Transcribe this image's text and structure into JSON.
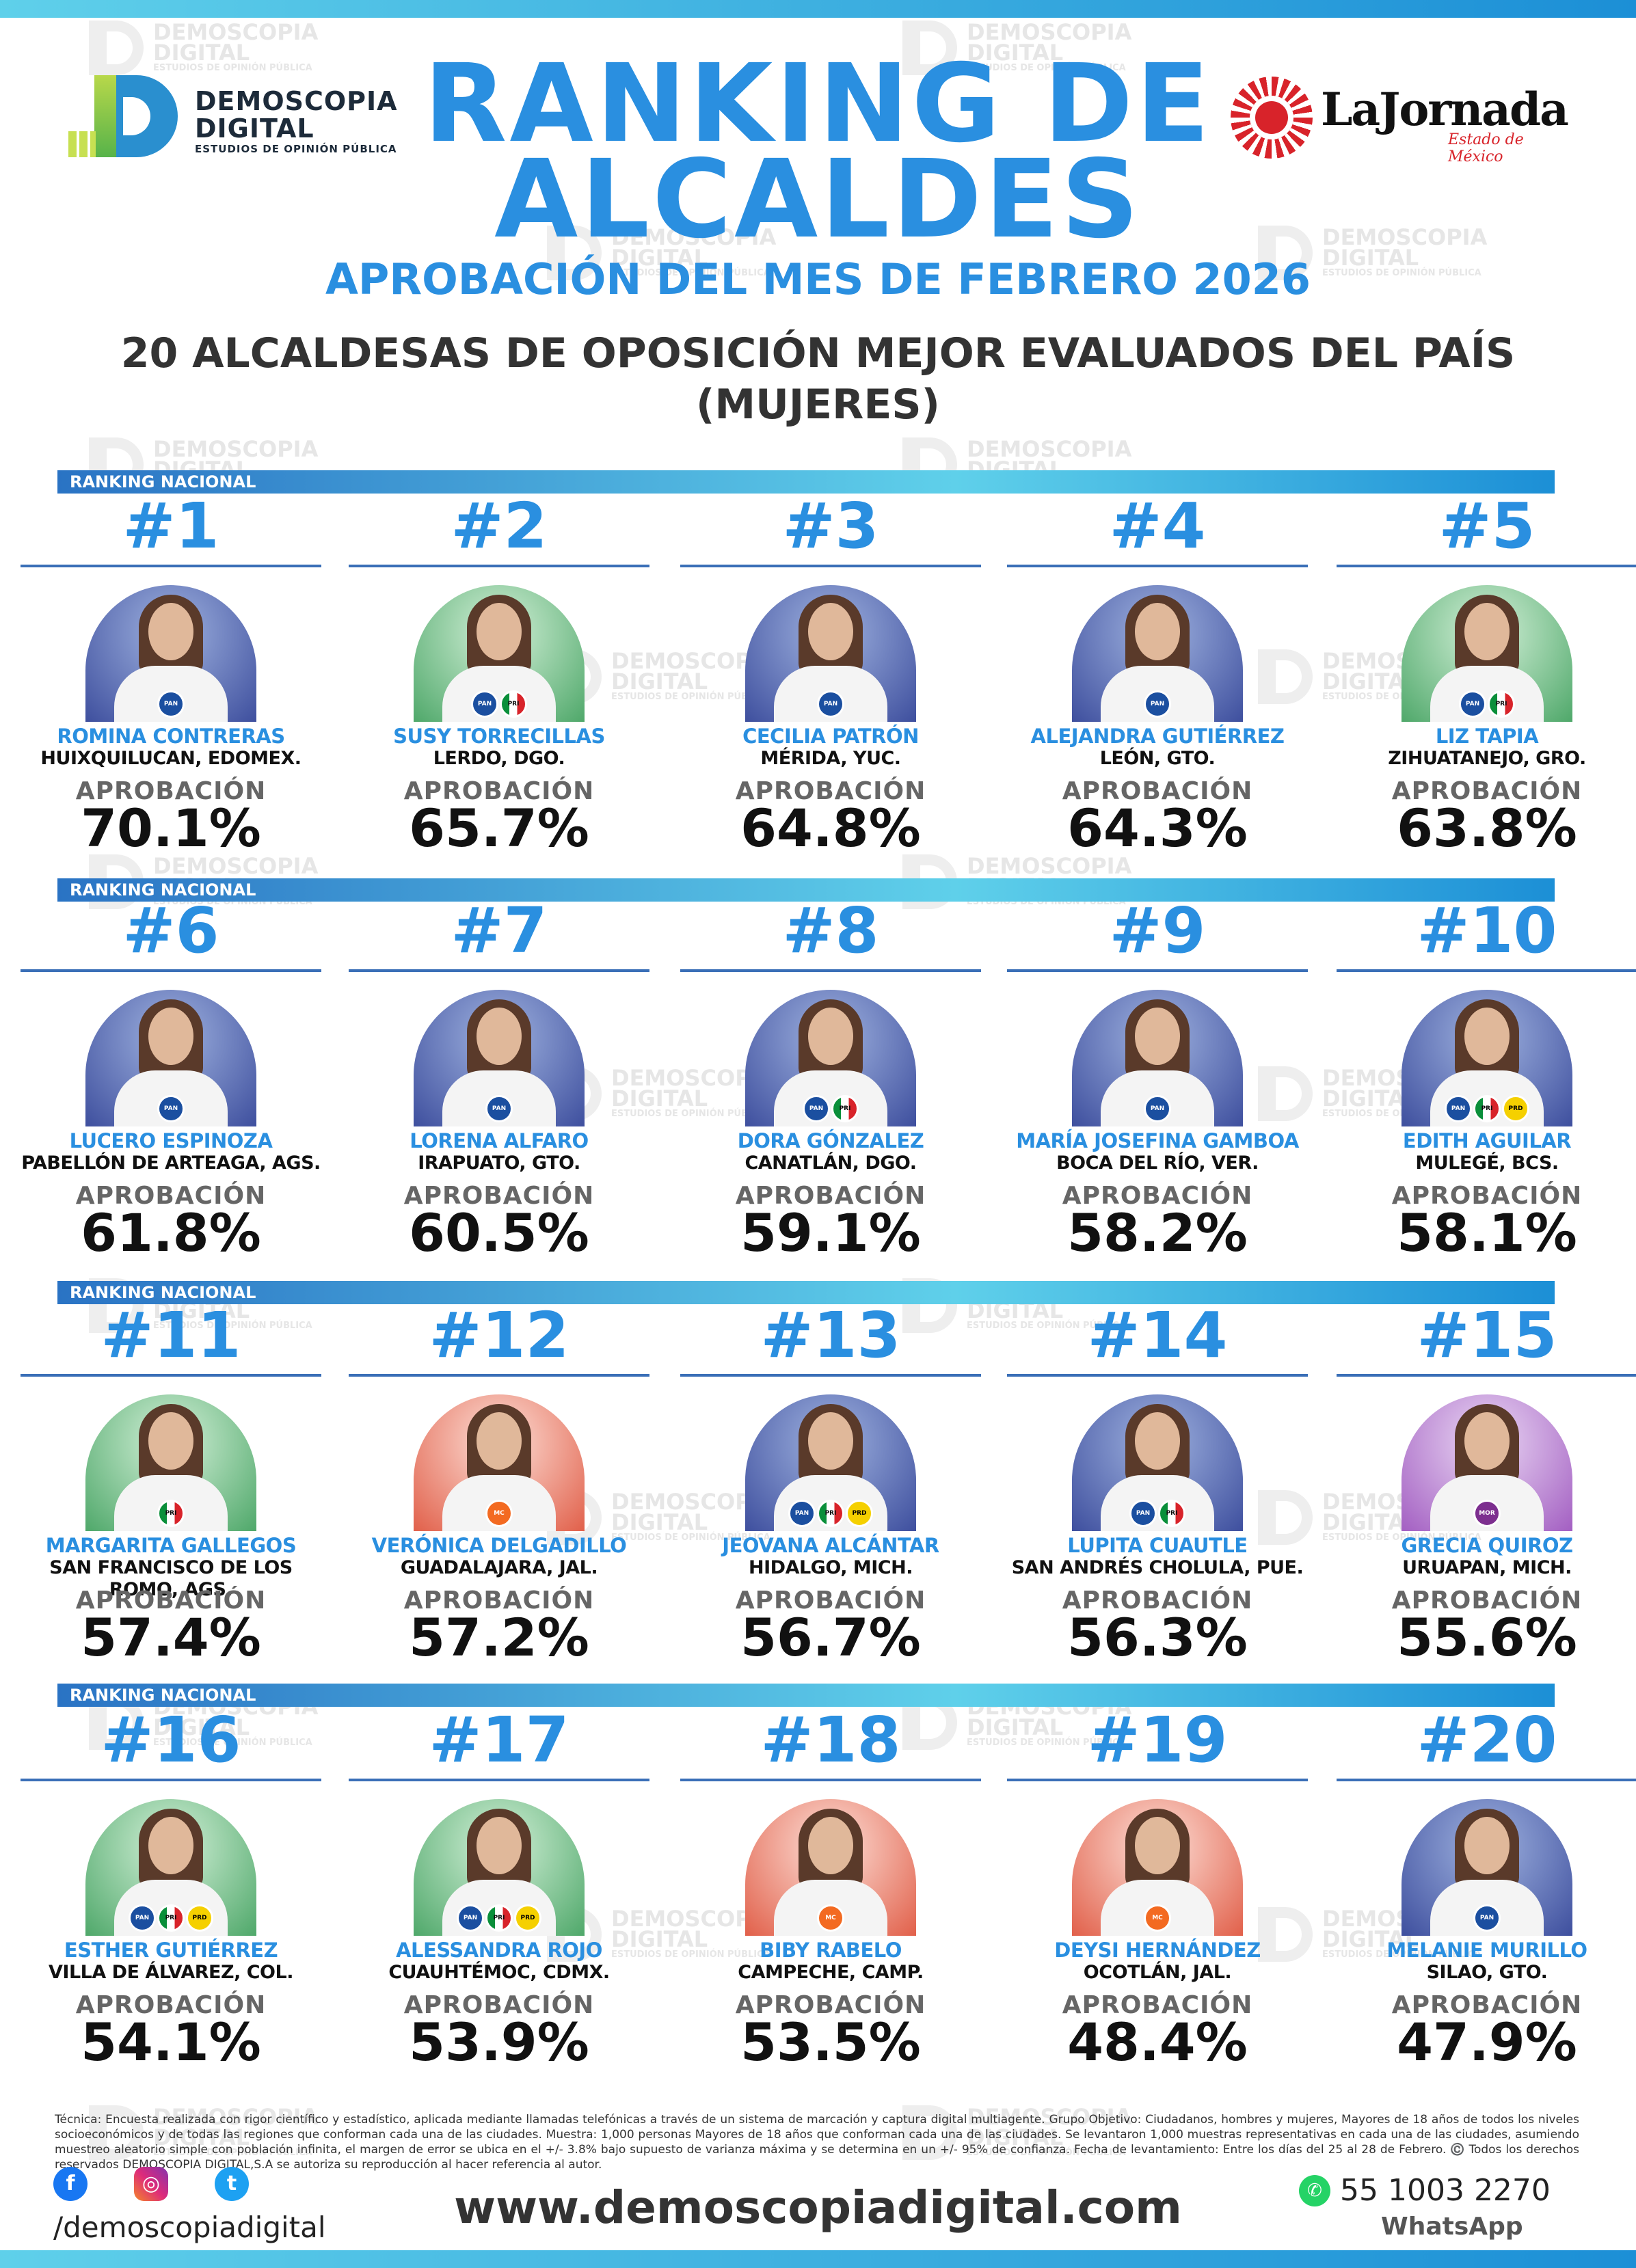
{
  "header": {
    "title_line1": "RANKING DE",
    "title_line2": "ALCALDES",
    "subtitle": "APROBACIÓN DEL MES DE FEBRERO 2026",
    "heading_line1": "20 ALCALDESAS DE OPOSICIÓN MEJOR EVALUADOS DEL PAÍS",
    "heading_line2": "(MUJERES)"
  },
  "logos": {
    "demoscopia_line1": "DEMOSCOPIA",
    "demoscopia_line2": "DIGITAL",
    "demoscopia_line3": "ESTUDIOS DE OPINIÓN PÚBLICA",
    "jornada_name": "LaJornada",
    "jornada_sub": "Estado de México"
  },
  "watermark": {
    "line1": "DEMOSCOPIA",
    "line2": "DIGITAL",
    "line3": "ESTUDIOS DE OPINIÓN PÚBLICA"
  },
  "band_label": "RANKING NACIONAL",
  "aprobacion_label": "APROBACIÓN",
  "ranking": [
    {
      "rank": "#1",
      "name": "ROMINA CONTRERAS",
      "city": "HUIXQUILUCAN, EDOMEX.",
      "approval": "70.1%",
      "parties": [
        "PAN"
      ]
    },
    {
      "rank": "#2",
      "name": "SUSY TORRECILLAS",
      "city": "LERDO, DGO.",
      "approval": "65.7%",
      "parties": [
        "PAN",
        "PRI"
      ]
    },
    {
      "rank": "#3",
      "name": "CECILIA PATRÓN",
      "city": "MÉRIDA, YUC.",
      "approval": "64.8%",
      "parties": [
        "PAN"
      ]
    },
    {
      "rank": "#4",
      "name": "ALEJANDRA GUTIÉRREZ",
      "city": "LEÓN, GTO.",
      "approval": "64.3%",
      "parties": [
        "PAN"
      ]
    },
    {
      "rank": "#5",
      "name": "LIZ TAPIA",
      "city": "ZIHUATANEJO, GRO.",
      "approval": "63.8%",
      "parties": [
        "PAN",
        "PRI"
      ]
    },
    {
      "rank": "#6",
      "name": "LUCERO ESPINOZA",
      "city": "PABELLÓN DE ARTEAGA, AGS.",
      "approval": "61.8%",
      "parties": [
        "PAN"
      ]
    },
    {
      "rank": "#7",
      "name": "LORENA ALFARO",
      "city": "IRAPUATO, GTO.",
      "approval": "60.5%",
      "parties": [
        "PAN"
      ]
    },
    {
      "rank": "#8",
      "name": "DORA GÓNZALEZ",
      "city": "CANATLÁN, DGO.",
      "approval": "59.1%",
      "parties": [
        "PAN",
        "PRI"
      ]
    },
    {
      "rank": "#9",
      "name": "MARÍA JOSEFINA GAMBOA",
      "city": "BOCA DEL RÍO, VER.",
      "approval": "58.2%",
      "parties": [
        "PAN"
      ]
    },
    {
      "rank": "#10",
      "name": "EDITH AGUILAR",
      "city": "MULEGÉ, BCS.",
      "approval": "58.1%",
      "parties": [
        "PAN",
        "PRI",
        "PRD"
      ]
    },
    {
      "rank": "#11",
      "name": "MARGARITA GALLEGOS",
      "city": "SAN FRANCISCO DE LOS ROMO, AGS.",
      "approval": "57.4%",
      "parties": [
        "PRI"
      ]
    },
    {
      "rank": "#12",
      "name": "VERÓNICA DELGADILLO",
      "city": "GUADALAJARA, JAL.",
      "approval": "57.2%",
      "parties": [
        "MC"
      ]
    },
    {
      "rank": "#13",
      "name": "JEOVANA ALCÁNTAR",
      "city": "HIDALGO, MICH.",
      "approval": "56.7%",
      "parties": [
        "PAN",
        "PRI",
        "PRD"
      ]
    },
    {
      "rank": "#14",
      "name": "LUPITA CUAUTLE",
      "city": "SAN ANDRÉS CHOLULA, PUE.",
      "approval": "56.3%",
      "parties": [
        "PAN",
        "PRI"
      ]
    },
    {
      "rank": "#15",
      "name": "GRECIA QUIROZ",
      "city": "URUAPAN, MICH.",
      "approval": "55.6%",
      "parties": [
        "MOR"
      ]
    },
    {
      "rank": "#16",
      "name": "ESTHER GUTIÉRREZ",
      "city": "VILLA DE ÁLVAREZ, COL.",
      "approval": "54.1%",
      "parties": [
        "PAN",
        "PRI",
        "PRD"
      ]
    },
    {
      "rank": "#17",
      "name": "ALESSANDRA ROJO",
      "city": "CUAUHTÉMOC, CDMX.",
      "approval": "53.9%",
      "parties": [
        "PAN",
        "PRI",
        "PRD"
      ]
    },
    {
      "rank": "#18",
      "name": "BIBY RABELO",
      "city": "CAMPECHE, CAMP.",
      "approval": "53.5%",
      "parties": [
        "MC"
      ]
    },
    {
      "rank": "#19",
      "name": "DEYSI HERNÁNDEZ",
      "city": "OCOTLÁN, JAL.",
      "approval": "48.4%",
      "parties": [
        "MC"
      ]
    },
    {
      "rank": "#20",
      "name": "MELANIE MURILLO",
      "city": "SILAO, GTO.",
      "approval": "47.9%",
      "parties": [
        "PAN"
      ]
    }
  ],
  "portrait_colors": [
    "blue",
    "green",
    "blue",
    "blue",
    "green",
    "blue",
    "blue",
    "blue",
    "blue",
    "blue",
    "green",
    "red",
    "blue",
    "blue",
    "purple",
    "green",
    "green",
    "red",
    "red",
    "blue"
  ],
  "footer": {
    "footnote": "Técnica: Encuesta realizada con rigor científico y estadístico, aplicada mediante llamadas telefónicas a través de un sistema de marcación y captura digital multiagente. Grupo Objetivo: Ciudadanos, hombres y mujeres, Mayores de 18 años de todos los niveles socioeconómicos y de todas las regiones que conforman cada una de las ciudades. Muestra: 1,000 personas Mayores de 18 años que conforman cada una de las ciudades. Se levantaron 1,000 muestras representativas en cada una de las ciudades, asumiendo muestreo aleatorio simple con población infinita, el margen de error se ubica en el +/- 3.8% bajo supuesto de varianza máxima y se determina en un +/- 95% de confianza. Fecha de levantamiento: Entre los días del 25 al 28 de Febrero. ©️ Todos los derechos reservados DEMOSCOPIA DIGITAL,S.A se autoriza su reproducción al hacer referencia al autor.",
    "handle": "/demoscopiadigital",
    "website": "www.demoscopiadigital.com",
    "whatsapp_number": "55 1003 2270",
    "whatsapp_label": "WhatsApp"
  }
}
